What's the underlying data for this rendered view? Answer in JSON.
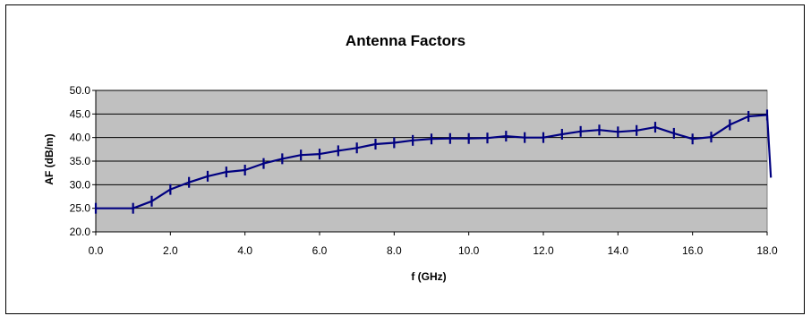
{
  "chart_data": {
    "type": "line",
    "title": "Antenna Factors",
    "xlabel": "f (GHz)",
    "ylabel": "AF (dB/m)",
    "xlim": [
      0,
      18
    ],
    "ylim": [
      20,
      50
    ],
    "x_ticks": [
      "0.0",
      "2.0",
      "4.0",
      "6.0",
      "8.0",
      "10.0",
      "12.0",
      "14.0",
      "16.0",
      "18.0"
    ],
    "y_ticks": [
      "20.0",
      "25.0",
      "30.0",
      "35.0",
      "40.0",
      "45.0",
      "50.0"
    ],
    "grid": true,
    "legend": "none",
    "plot_background": "#c0c0c0",
    "line_color": "#000080",
    "series": [
      {
        "marker": "vertical-dash",
        "x": [
          0.0,
          1.0,
          1.5,
          2.0,
          2.5,
          3.0,
          3.5,
          4.0,
          4.5,
          5.0,
          5.5,
          6.0,
          6.5,
          7.0,
          7.5,
          8.0,
          8.5,
          9.0,
          9.5,
          10.0,
          10.5,
          11.0,
          11.5,
          12.0,
          12.5,
          13.0,
          13.5,
          14.0,
          14.5,
          15.0,
          15.5,
          16.0,
          16.5,
          17.0,
          17.5,
          18.0,
          18.1
        ],
        "y": [
          25.0,
          25.0,
          26.5,
          29.0,
          30.5,
          31.8,
          32.7,
          33.1,
          34.5,
          35.5,
          36.3,
          36.5,
          37.2,
          37.8,
          38.6,
          38.9,
          39.4,
          39.7,
          39.8,
          39.8,
          39.9,
          40.3,
          40.0,
          40.0,
          40.7,
          41.3,
          41.6,
          41.2,
          41.5,
          42.2,
          40.9,
          39.7,
          40.1,
          42.7,
          44.5,
          44.8,
          31.5
        ]
      }
    ]
  }
}
